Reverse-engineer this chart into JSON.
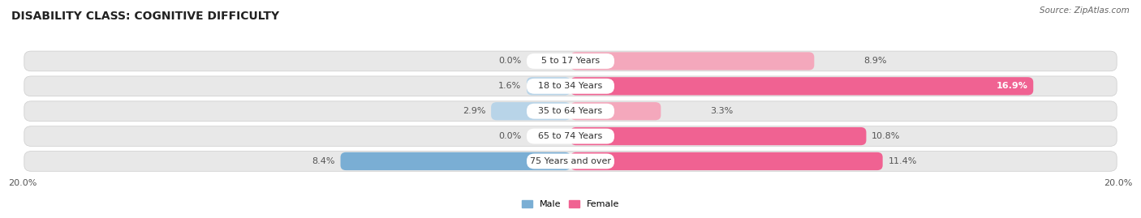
{
  "title": "DISABILITY CLASS: COGNITIVE DIFFICULTY",
  "source": "Source: ZipAtlas.com",
  "categories": [
    "5 to 17 Years",
    "18 to 34 Years",
    "35 to 64 Years",
    "65 to 74 Years",
    "75 Years and over"
  ],
  "male_values": [
    0.0,
    1.6,
    2.9,
    0.0,
    8.4
  ],
  "female_values": [
    8.9,
    16.9,
    3.3,
    10.8,
    11.4
  ],
  "male_color_dark": "#7aaed4",
  "male_color_light": "#b8d4e8",
  "female_color_dark": "#f06292",
  "female_color_light": "#f4a8bc",
  "row_bg_color": "#e8e8e8",
  "white": "#ffffff",
  "axis_max": 20.0,
  "legend_male": "Male",
  "legend_female": "Female",
  "title_fontsize": 10,
  "label_fontsize": 8,
  "tick_fontsize": 8,
  "value_fontsize": 8
}
